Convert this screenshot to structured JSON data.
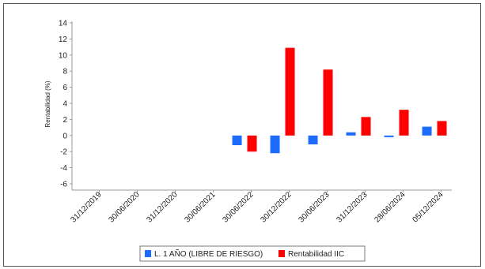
{
  "chart_data": {
    "type": "bar",
    "title": "",
    "xlabel": "",
    "ylabel": "Rentabilidad (%)",
    "ylim": [
      -6,
      14
    ],
    "yticks": [
      -6,
      -4,
      -2,
      0,
      2,
      4,
      6,
      8,
      10,
      12,
      14
    ],
    "categories": [
      "31/12/2019",
      "30/06/2020",
      "31/12/2020",
      "30/06/2021",
      "30/06/2022",
      "30/12/2022",
      "30/06/2023",
      "31/12/2023",
      "28/06/2024",
      "05/12/2024"
    ],
    "grid": false,
    "legend_position": "bottom",
    "series": [
      {
        "name": "L. 1 AÑO (LIBRE DE RIESGO)",
        "color": "#1e6bff",
        "values": [
          null,
          null,
          null,
          null,
          -1.2,
          -2.2,
          -1.1,
          0.4,
          -0.2,
          1.1
        ]
      },
      {
        "name": "Rentabilidad IIC",
        "color": "#ff0000",
        "values": [
          null,
          null,
          null,
          null,
          -2.0,
          10.9,
          8.2,
          2.3,
          3.2,
          1.8
        ]
      }
    ]
  }
}
